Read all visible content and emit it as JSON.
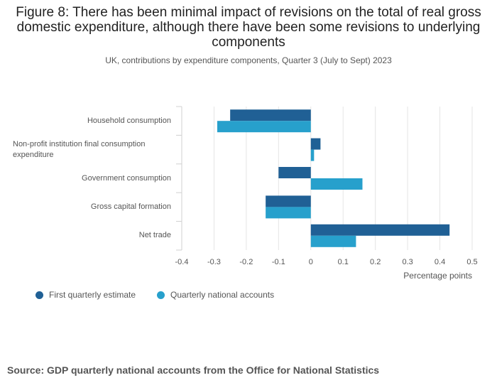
{
  "title": "Figure 8: There has been minimal impact of revisions on the total of real gross domestic expenditure, although there have been some revisions to underlying components",
  "subtitle": "UK, contributions by expenditure components, Quarter 3 (July to Sept) 2023",
  "source": "Source: GDP quarterly national accounts from the Office for National Statistics",
  "colors": {
    "first_estimate": "#206095",
    "quarterly_accounts": "#27a0cc",
    "grid": "#e5e5e5",
    "axis": "#d0d0d0"
  },
  "chart_data": {
    "type": "bar",
    "orientation": "horizontal",
    "categories": [
      "Household consumption",
      "Non-profit institution final consumption expenditure",
      "Government consumption",
      "Gross capital formation",
      "Net trade"
    ],
    "series": [
      {
        "name": "First quarterly estimate",
        "values": [
          -0.25,
          0.03,
          -0.1,
          -0.14,
          0.43
        ]
      },
      {
        "name": "Quarterly national accounts",
        "values": [
          -0.29,
          0.01,
          0.16,
          -0.14,
          0.14
        ]
      }
    ],
    "xlabel": "Percentage points",
    "xlim": [
      -0.4,
      0.5
    ],
    "xticks": [
      "-0.4",
      "-0.3",
      "-0.2",
      "-0.1",
      "0",
      "0.1",
      "0.2",
      "0.3",
      "0.4",
      "0.5"
    ],
    "grid": true,
    "legend_position": "bottom-left"
  }
}
